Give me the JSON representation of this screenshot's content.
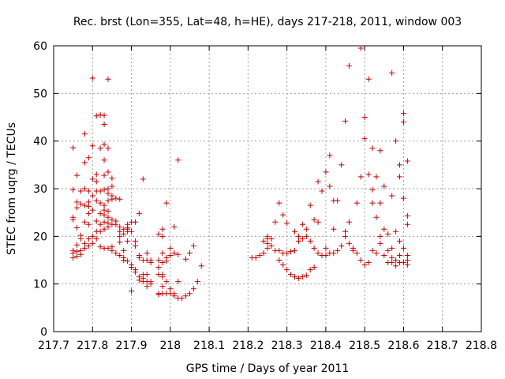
{
  "chart_data": {
    "type": "scatter",
    "title": "Rec. brst (Lon=355, Lat=48, h=HE), days 217-218, 2011, window 003",
    "xlabel": "GPS time / Days of year 2011",
    "ylabel": "STEC from uqrg / TECUs",
    "xlim": [
      217.7,
      218.8
    ],
    "ylim": [
      0,
      60
    ],
    "x_ticks": [
      217.7,
      217.8,
      217.9,
      218.0,
      218.1,
      218.2,
      218.3,
      218.4,
      218.5,
      218.6,
      218.7,
      218.8
    ],
    "x_tick_labels": [
      "217.7",
      "217.8",
      "217.9",
      "218",
      "218.1",
      "218.2",
      "218.3",
      "218.4",
      "218.5",
      "218.6",
      "218.7",
      "218.8"
    ],
    "y_ticks": [
      0,
      10,
      20,
      30,
      40,
      50,
      60
    ],
    "y_tick_labels": [
      "0",
      "10",
      "20",
      "30",
      "40",
      "50",
      "60"
    ],
    "grid": true,
    "marker": "+",
    "color": "#cc0000",
    "points": [
      [
        217.75,
        38.6
      ],
      [
        217.75,
        29.8
      ],
      [
        217.75,
        24.0
      ],
      [
        217.75,
        23.5
      ],
      [
        217.75,
        17.0
      ],
      [
        217.75,
        16.5
      ],
      [
        217.75,
        15.5
      ],
      [
        217.76,
        32.8
      ],
      [
        217.76,
        27.2
      ],
      [
        217.76,
        26.0
      ],
      [
        217.76,
        21.8
      ],
      [
        217.76,
        18.2
      ],
      [
        217.76,
        16.8
      ],
      [
        217.76,
        15.8
      ],
      [
        217.77,
        29.5
      ],
      [
        217.77,
        26.8
      ],
      [
        217.77,
        20.2
      ],
      [
        217.77,
        19.5
      ],
      [
        217.77,
        17.0
      ],
      [
        217.77,
        16.2
      ],
      [
        217.78,
        41.5
      ],
      [
        217.78,
        35.5
      ],
      [
        217.78,
        30.0
      ],
      [
        217.78,
        26.5
      ],
      [
        217.78,
        23.0
      ],
      [
        217.78,
        18.5
      ],
      [
        217.78,
        17.5
      ],
      [
        217.79,
        36.5
      ],
      [
        217.79,
        29.5
      ],
      [
        217.79,
        27.2
      ],
      [
        217.79,
        26.3
      ],
      [
        217.79,
        24.8
      ],
      [
        217.79,
        22.5
      ],
      [
        217.79,
        19.5
      ],
      [
        217.79,
        18.0
      ],
      [
        217.8,
        53.2
      ],
      [
        217.8,
        39.0
      ],
      [
        217.8,
        32.0
      ],
      [
        217.8,
        28.5
      ],
      [
        217.8,
        25.5
      ],
      [
        217.8,
        20.0
      ],
      [
        217.8,
        18.5
      ],
      [
        217.81,
        45.3
      ],
      [
        217.81,
        33.0
      ],
      [
        217.81,
        31.5
      ],
      [
        217.81,
        29.5
      ],
      [
        217.81,
        27.5
      ],
      [
        217.81,
        23.2
      ],
      [
        217.81,
        21.0
      ],
      [
        217.81,
        19.5
      ],
      [
        217.82,
        45.5
      ],
      [
        217.82,
        38.5
      ],
      [
        217.82,
        29.5
      ],
      [
        217.82,
        27.0
      ],
      [
        217.82,
        24.8
      ],
      [
        217.82,
        22.5
      ],
      [
        217.82,
        21.0
      ],
      [
        217.82,
        17.8
      ],
      [
        217.83,
        45.4
      ],
      [
        217.83,
        43.5
      ],
      [
        217.83,
        39.3
      ],
      [
        217.83,
        36.0
      ],
      [
        217.83,
        32.8
      ],
      [
        217.83,
        29.8
      ],
      [
        217.83,
        26.5
      ],
      [
        217.83,
        25.5
      ],
      [
        217.83,
        24.5
      ],
      [
        217.83,
        23.0
      ],
      [
        217.83,
        21.5
      ],
      [
        217.83,
        17.5
      ],
      [
        217.84,
        53.0
      ],
      [
        217.84,
        38.5
      ],
      [
        217.84,
        33.5
      ],
      [
        217.84,
        30.0
      ],
      [
        217.84,
        29.0
      ],
      [
        217.84,
        27.5
      ],
      [
        217.84,
        25.3
      ],
      [
        217.84,
        24.0
      ],
      [
        217.84,
        22.8
      ],
      [
        217.84,
        22.0
      ],
      [
        217.84,
        17.5
      ],
      [
        217.85,
        32.2
      ],
      [
        217.85,
        30.5
      ],
      [
        217.85,
        28.5
      ],
      [
        217.85,
        27.8
      ],
      [
        217.85,
        23.5
      ],
      [
        217.85,
        22.5
      ],
      [
        217.85,
        17.8
      ],
      [
        217.85,
        17.0
      ],
      [
        217.86,
        28.0
      ],
      [
        217.86,
        23.2
      ],
      [
        217.86,
        22.5
      ],
      [
        217.86,
        16.5
      ],
      [
        217.87,
        27.8
      ],
      [
        217.87,
        22.0
      ],
      [
        217.87,
        21.0
      ],
      [
        217.87,
        20.0
      ],
      [
        217.87,
        18.8
      ],
      [
        217.87,
        16.0
      ],
      [
        217.88,
        21.5
      ],
      [
        217.88,
        20.5
      ],
      [
        217.88,
        17.0
      ],
      [
        217.88,
        15.5
      ],
      [
        217.88,
        15.0
      ],
      [
        217.89,
        22.5
      ],
      [
        217.89,
        21.8
      ],
      [
        217.89,
        21.5
      ],
      [
        217.89,
        21.0
      ],
      [
        217.89,
        19.0
      ],
      [
        217.89,
        14.8
      ],
      [
        217.9,
        23.0
      ],
      [
        217.9,
        21.0
      ],
      [
        217.9,
        14.0
      ],
      [
        217.9,
        13.5
      ],
      [
        217.9,
        8.5
      ],
      [
        217.91,
        23.0
      ],
      [
        217.91,
        19.0
      ],
      [
        217.91,
        18.0
      ],
      [
        217.91,
        13.0
      ],
      [
        217.91,
        12.5
      ],
      [
        217.92,
        24.8
      ],
      [
        217.92,
        16.0
      ],
      [
        217.92,
        15.5
      ],
      [
        217.92,
        11.5
      ],
      [
        217.92,
        10.8
      ],
      [
        217.93,
        32.0
      ],
      [
        217.93,
        15.0
      ],
      [
        217.93,
        12.0
      ],
      [
        217.93,
        11.2
      ],
      [
        217.93,
        10.5
      ],
      [
        217.94,
        16.5
      ],
      [
        217.94,
        15.0
      ],
      [
        217.94,
        12.0
      ],
      [
        217.94,
        10.5
      ],
      [
        217.94,
        9.5
      ],
      [
        217.95,
        15.0
      ],
      [
        217.95,
        14.5
      ],
      [
        217.95,
        10.5
      ],
      [
        217.95,
        10.0
      ],
      [
        217.97,
        20.5
      ],
      [
        217.97,
        15.0
      ],
      [
        217.97,
        13.5
      ],
      [
        217.97,
        12.0
      ],
      [
        217.97,
        8.0
      ],
      [
        217.97,
        7.8
      ],
      [
        217.98,
        21.5
      ],
      [
        217.98,
        20.0
      ],
      [
        217.98,
        16.5
      ],
      [
        217.98,
        14.5
      ],
      [
        217.98,
        12.0
      ],
      [
        217.98,
        11.5
      ],
      [
        217.98,
        9.5
      ],
      [
        217.98,
        8.0
      ],
      [
        217.99,
        27.0
      ],
      [
        217.99,
        15.5
      ],
      [
        217.99,
        14.8
      ],
      [
        217.99,
        10.5
      ],
      [
        217.99,
        8.0
      ],
      [
        218.0,
        17.5
      ],
      [
        218.0,
        16.0
      ],
      [
        218.0,
        9.0
      ],
      [
        218.0,
        8.0
      ],
      [
        218.01,
        22.0
      ],
      [
        218.01,
        16.5
      ],
      [
        218.01,
        8.0
      ],
      [
        218.01,
        7.5
      ],
      [
        218.02,
        36.0
      ],
      [
        218.02,
        16.2
      ],
      [
        218.02,
        10.5
      ],
      [
        218.02,
        7.0
      ],
      [
        218.03,
        7.0
      ],
      [
        218.04,
        15.2
      ],
      [
        218.04,
        7.5
      ],
      [
        218.05,
        16.5
      ],
      [
        218.05,
        8.0
      ],
      [
        218.06,
        18.0
      ],
      [
        218.06,
        9.0
      ],
      [
        218.07,
        10.5
      ],
      [
        218.08,
        13.8
      ],
      [
        218.21,
        15.5
      ],
      [
        218.22,
        15.5
      ],
      [
        218.23,
        16.0
      ],
      [
        218.24,
        19.0
      ],
      [
        218.24,
        16.5
      ],
      [
        218.25,
        20.0
      ],
      [
        218.25,
        19.5
      ],
      [
        218.25,
        18.5
      ],
      [
        218.25,
        17.5
      ],
      [
        218.26,
        19.5
      ],
      [
        218.26,
        18.0
      ],
      [
        218.27,
        23.0
      ],
      [
        218.27,
        17.0
      ],
      [
        218.28,
        27.0
      ],
      [
        218.28,
        17.0
      ],
      [
        218.28,
        15.0
      ],
      [
        218.29,
        24.5
      ],
      [
        218.29,
        16.5
      ],
      [
        218.29,
        14.0
      ],
      [
        218.3,
        22.8
      ],
      [
        218.3,
        16.5
      ],
      [
        218.3,
        13.0
      ],
      [
        218.31,
        16.8
      ],
      [
        218.31,
        12.0
      ],
      [
        218.32,
        21.0
      ],
      [
        218.32,
        17.0
      ],
      [
        218.32,
        11.5
      ],
      [
        218.33,
        20.0
      ],
      [
        218.33,
        19.0
      ],
      [
        218.33,
        11.2
      ],
      [
        218.34,
        22.5
      ],
      [
        218.34,
        19.5
      ],
      [
        218.34,
        11.5
      ],
      [
        218.35,
        21.5
      ],
      [
        218.35,
        20.0
      ],
      [
        218.35,
        11.8
      ],
      [
        218.36,
        26.5
      ],
      [
        218.36,
        19.0
      ],
      [
        218.36,
        13.0
      ],
      [
        218.37,
        23.5
      ],
      [
        218.37,
        17.5
      ],
      [
        218.37,
        13.5
      ],
      [
        218.38,
        31.5
      ],
      [
        218.38,
        23.0
      ],
      [
        218.38,
        16.5
      ],
      [
        218.39,
        29.5
      ],
      [
        218.39,
        16.0
      ],
      [
        218.4,
        33.5
      ],
      [
        218.4,
        17.5
      ],
      [
        218.4,
        16.0
      ],
      [
        218.41,
        37.0
      ],
      [
        218.41,
        30.5
      ],
      [
        218.41,
        16.5
      ],
      [
        218.42,
        27.5
      ],
      [
        218.42,
        21.5
      ],
      [
        218.42,
        16.5
      ],
      [
        218.43,
        27.5
      ],
      [
        218.43,
        17.0
      ],
      [
        218.44,
        35.0
      ],
      [
        218.44,
        18.0
      ],
      [
        218.45,
        44.2
      ],
      [
        218.45,
        21.0
      ],
      [
        218.45,
        20.0
      ],
      [
        218.46,
        55.8
      ],
      [
        218.46,
        23.0
      ],
      [
        218.46,
        18.5
      ],
      [
        218.47,
        17.5
      ],
      [
        218.47,
        17.0
      ],
      [
        218.48,
        27.0
      ],
      [
        218.48,
        16.5
      ],
      [
        218.49,
        59.5
      ],
      [
        218.49,
        32.5
      ],
      [
        218.49,
        15.0
      ],
      [
        218.5,
        45.0
      ],
      [
        218.5,
        40.5
      ],
      [
        218.5,
        14.0
      ],
      [
        218.51,
        53.0
      ],
      [
        218.51,
        33.0
      ],
      [
        218.51,
        14.5
      ],
      [
        218.52,
        38.5
      ],
      [
        218.52,
        29.8
      ],
      [
        218.52,
        27.0
      ],
      [
        218.52,
        17.0
      ],
      [
        218.53,
        32.5
      ],
      [
        218.53,
        24.0
      ],
      [
        218.53,
        16.5
      ],
      [
        218.54,
        38.0
      ],
      [
        218.54,
        27.0
      ],
      [
        218.54,
        20.0
      ],
      [
        218.54,
        18.5
      ],
      [
        218.55,
        30.5
      ],
      [
        218.55,
        21.5
      ],
      [
        218.55,
        16.0
      ],
      [
        218.56,
        20.5
      ],
      [
        218.56,
        17.0
      ],
      [
        218.56,
        14.5
      ],
      [
        218.57,
        54.3
      ],
      [
        218.57,
        28.5
      ],
      [
        218.57,
        17.5
      ],
      [
        218.57,
        15.5
      ],
      [
        218.57,
        14.5
      ],
      [
        218.58,
        40.0
      ],
      [
        218.58,
        21.0
      ],
      [
        218.58,
        15.0
      ],
      [
        218.58,
        13.8
      ],
      [
        218.59,
        35.0
      ],
      [
        218.59,
        32.5
      ],
      [
        218.59,
        19.0
      ],
      [
        218.59,
        16.0
      ],
      [
        218.59,
        14.5
      ],
      [
        218.6,
        45.8
      ],
      [
        218.6,
        44.0
      ],
      [
        218.6,
        28.0
      ],
      [
        218.6,
        17.5
      ],
      [
        218.6,
        14.5
      ],
      [
        218.61,
        35.8
      ],
      [
        218.61,
        24.3
      ],
      [
        218.61,
        22.5
      ],
      [
        218.61,
        16.0
      ],
      [
        218.61,
        15.0
      ],
      [
        218.61,
        14.0
      ]
    ]
  }
}
